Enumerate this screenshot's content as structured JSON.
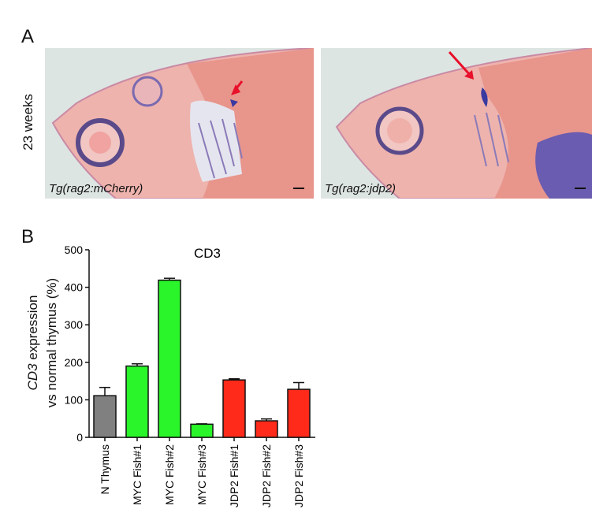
{
  "panels": {
    "a_letter": "A",
    "b_letter": "B",
    "row_label": "23 weeks",
    "images": [
      {
        "label": "Tg(rag2:mCherry)",
        "annotation": "red-arrow-thymus"
      },
      {
        "label": "Tg(rag2:jdp2)",
        "annotation": "red-arrow-thymus"
      }
    ]
  },
  "chart_data": {
    "type": "bar",
    "title": "CD3",
    "ylabel_italic": "CD3",
    "ylabel_rest": " expression",
    "ylabel_line2": "vs normal thymus (%)",
    "xlabel": "",
    "ylim": [
      0,
      500
    ],
    "yticks": [
      0,
      100,
      200,
      300,
      400,
      500
    ],
    "categories": [
      "N Thymus",
      "MYC Fish#1",
      "MYC Fish#2",
      "MYC Fish#3",
      "JDP2 Fish#1",
      "JDP2 Fish#2",
      "JDP2 Fish#3"
    ],
    "values": [
      111,
      190,
      419,
      35,
      153,
      44,
      128
    ],
    "errors": [
      22,
      6,
      5,
      1,
      3,
      5,
      18
    ],
    "colors": [
      "#808080",
      "#2af52a",
      "#2af52a",
      "#2af52a",
      "#ff2a1a",
      "#ff2a1a",
      "#ff2a1a"
    ],
    "grid": false
  }
}
